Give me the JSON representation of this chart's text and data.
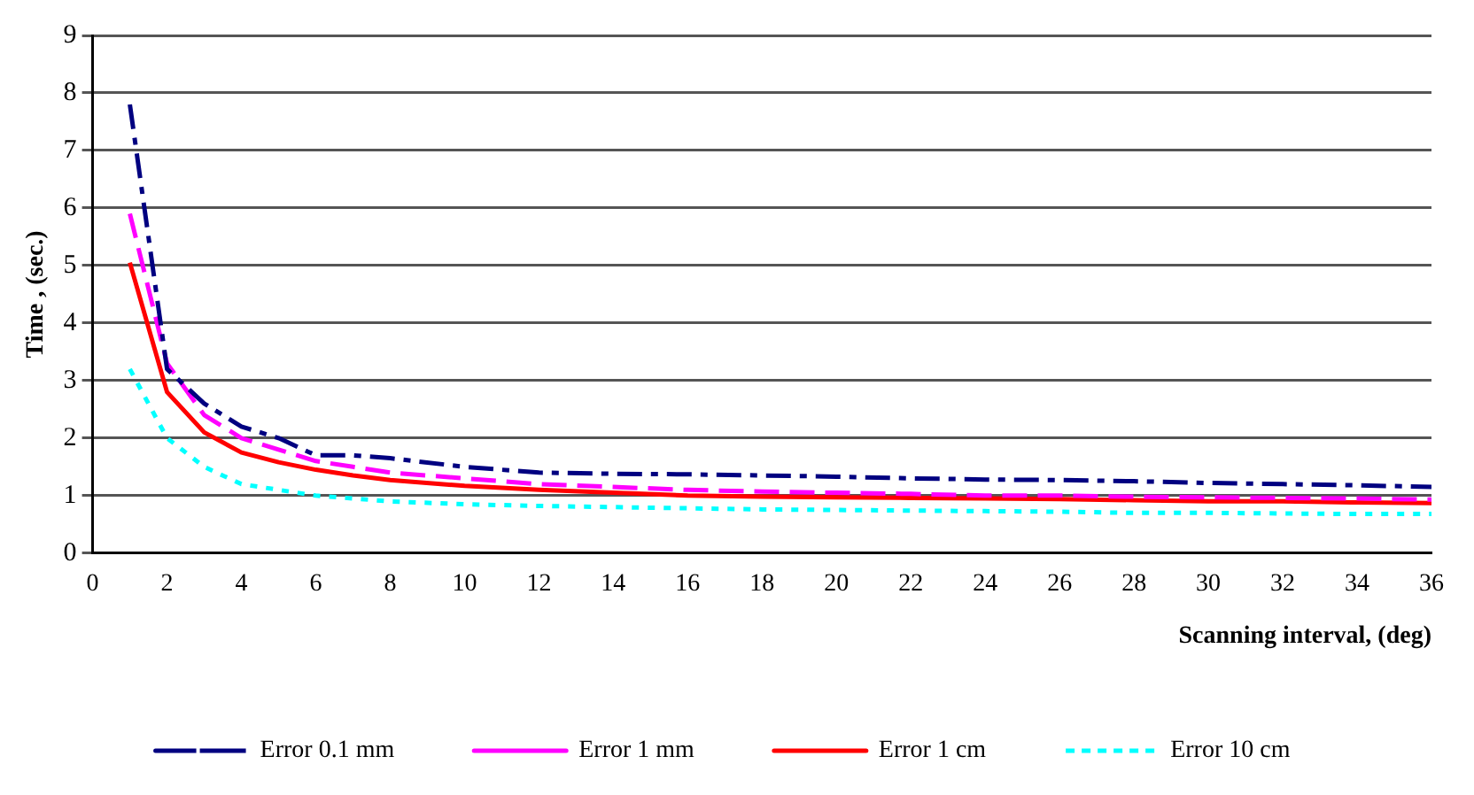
{
  "chart_data": {
    "type": "line",
    "xlabel": "Scanning interval, (deg)",
    "ylabel": "Time , (sec.)",
    "x": [
      1,
      2,
      3,
      4,
      5,
      6,
      7,
      8,
      10,
      12,
      14,
      16,
      18,
      20,
      22,
      24,
      26,
      28,
      30,
      32,
      34,
      36
    ],
    "xlim": [
      0,
      36
    ],
    "xticks": [
      0,
      2,
      4,
      6,
      8,
      10,
      12,
      14,
      16,
      18,
      20,
      22,
      24,
      26,
      28,
      30,
      32,
      34,
      36
    ],
    "ylim": [
      0,
      9
    ],
    "yticks": [
      0,
      1,
      2,
      3,
      4,
      5,
      6,
      7,
      8,
      9
    ],
    "grid": "y",
    "legend": "bottom",
    "marker": "none",
    "series": [
      {
        "name": "Error 0.1 mm",
        "color": "#000080",
        "line_style": "dashdot",
        "values": [
          7.8,
          3.2,
          2.6,
          2.2,
          2.0,
          1.7,
          1.7,
          1.65,
          1.5,
          1.4,
          1.38,
          1.37,
          1.35,
          1.33,
          1.3,
          1.28,
          1.27,
          1.25,
          1.22,
          1.2,
          1.18,
          1.15
        ]
      },
      {
        "name": "Error 1 mm",
        "color": "#ff00ff",
        "line_style": "dashed",
        "values": [
          5.9,
          3.3,
          2.4,
          2.0,
          1.8,
          1.6,
          1.5,
          1.4,
          1.3,
          1.2,
          1.15,
          1.1,
          1.07,
          1.05,
          1.03,
          1.0,
          1.0,
          0.98,
          0.97,
          0.96,
          0.95,
          0.93
        ]
      },
      {
        "name": "Error 1 cm",
        "color": "#ff0000",
        "line_style": "solid",
        "values": [
          5.05,
          2.8,
          2.1,
          1.75,
          1.58,
          1.45,
          1.35,
          1.27,
          1.17,
          1.1,
          1.05,
          1.0,
          0.98,
          0.97,
          0.96,
          0.95,
          0.94,
          0.92,
          0.9,
          0.9,
          0.88,
          0.87
        ]
      },
      {
        "name": "Error 10 cm",
        "color": "#00ffff",
        "line_style": "dotted",
        "values": [
          3.2,
          2.0,
          1.5,
          1.2,
          1.1,
          1.0,
          0.95,
          0.9,
          0.85,
          0.82,
          0.8,
          0.78,
          0.76,
          0.75,
          0.74,
          0.73,
          0.72,
          0.7,
          0.7,
          0.69,
          0.68,
          0.68
        ]
      }
    ]
  }
}
